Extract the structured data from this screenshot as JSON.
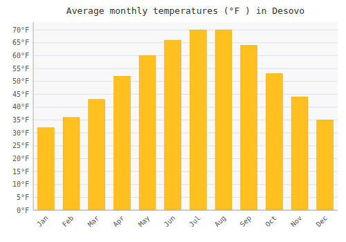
{
  "chart_data": {
    "type": "bar",
    "title": "Average monthly temperatures (°F ) in Desovo",
    "categories": [
      "Jan",
      "Feb",
      "Mar",
      "Apr",
      "May",
      "Jun",
      "Jul",
      "Aug",
      "Sep",
      "Oct",
      "Nov",
      "Dec"
    ],
    "values": [
      32,
      36,
      43,
      52,
      60,
      66,
      70,
      70,
      64,
      53,
      44,
      35
    ],
    "color": "#FFC020",
    "ylim": [
      0,
      73
    ],
    "yticks": [
      {
        "value": 0,
        "label": "0°F"
      },
      {
        "value": 5,
        "label": "5°F"
      },
      {
        "value": 10,
        "label": "10°F"
      },
      {
        "value": 15,
        "label": "15°F"
      },
      {
        "value": 20,
        "label": "20°F"
      },
      {
        "value": 25,
        "label": "25°F"
      },
      {
        "value": 30,
        "label": "30°F"
      },
      {
        "value": 35,
        "label": "35°F"
      },
      {
        "value": 40,
        "label": "40°F"
      },
      {
        "value": 45,
        "label": "45°F"
      },
      {
        "value": 50,
        "label": "50°F"
      },
      {
        "value": 55,
        "label": "55°F"
      },
      {
        "value": 60,
        "label": "60°F"
      },
      {
        "value": 65,
        "label": "65°F"
      },
      {
        "value": 70,
        "label": "70°F"
      }
    ],
    "grid": true
  }
}
